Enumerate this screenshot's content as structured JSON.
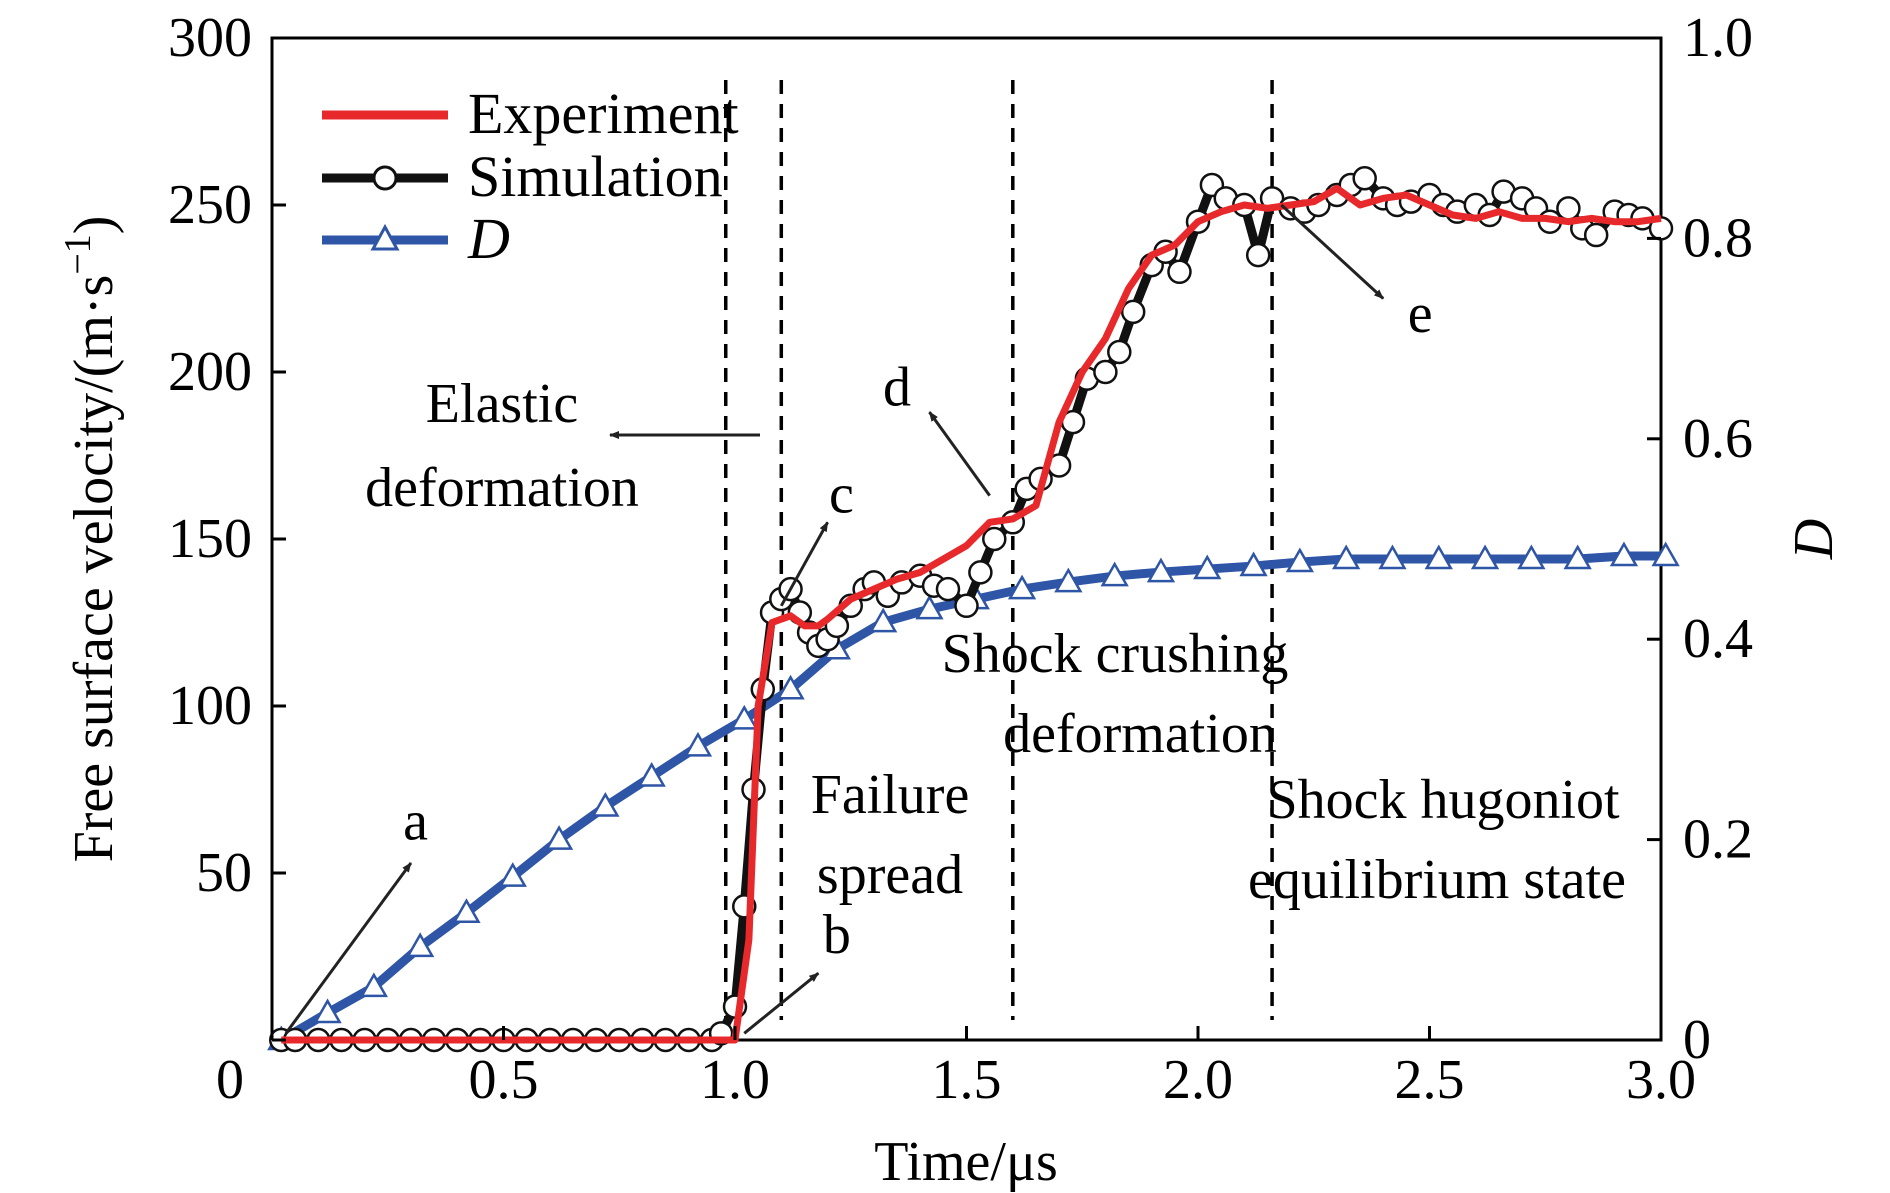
{
  "chart_data": {
    "type": "line",
    "x_axis": {
      "label": "Time/μs",
      "range": [
        0,
        3.0
      ],
      "ticks": [
        "0",
        "0.5",
        "1.0",
        "1.5",
        "2.0",
        "2.5",
        "3.0"
      ]
    },
    "y_left": {
      "label": "Free surface velocity/(m·s⁻¹)",
      "label_main": "Free surface velocity/(m·s",
      "label_exp": "−1",
      "label_close": ")",
      "range": [
        0,
        300
      ],
      "ticks": [
        "0",
        "50",
        "100",
        "150",
        "200",
        "250",
        "300"
      ]
    },
    "y_right": {
      "label": "D",
      "range": [
        0,
        1.0
      ],
      "ticks": [
        "0",
        "0.2",
        "0.4",
        "0.6",
        "0.8",
        "1.0"
      ]
    },
    "grid": false,
    "legend": {
      "position": "top-left",
      "entries": [
        {
          "name": "Experiment",
          "color": "#e8292b",
          "marker": "none"
        },
        {
          "name": "Simulation",
          "color": "#111111",
          "marker": "open-circle"
        },
        {
          "name": "D",
          "color": "#2f55a6",
          "marker": "open-triangle",
          "italic": true
        }
      ]
    },
    "series": [
      {
        "name": "Experiment",
        "axis": "left",
        "color": "#e8292b",
        "x": [
          0.02,
          1.0,
          1.03,
          1.05,
          1.08,
          1.12,
          1.15,
          1.18,
          1.2,
          1.25,
          1.3,
          1.35,
          1.4,
          1.45,
          1.5,
          1.55,
          1.6,
          1.65,
          1.7,
          1.75,
          1.8,
          1.85,
          1.9,
          1.95,
          2.0,
          2.05,
          2.1,
          2.15,
          2.2,
          2.25,
          2.3,
          2.35,
          2.4,
          2.45,
          2.5,
          2.55,
          2.6,
          2.65,
          2.7,
          2.75,
          2.8,
          2.85,
          2.9,
          2.95,
          3.0
        ],
        "y": [
          0,
          0,
          30,
          100,
          125,
          127,
          124,
          124,
          126,
          132,
          135,
          138,
          140,
          144,
          148,
          155,
          156,
          160,
          185,
          200,
          210,
          225,
          235,
          238,
          245,
          248,
          250,
          249,
          250,
          251,
          255,
          250,
          252,
          253,
          250,
          247,
          246,
          248,
          246,
          246,
          245,
          246,
          245,
          245,
          246
        ]
      },
      {
        "name": "Simulation",
        "axis": "left",
        "color": "#111111",
        "x": [
          0.02,
          0.05,
          0.1,
          0.15,
          0.2,
          0.25,
          0.3,
          0.35,
          0.4,
          0.45,
          0.5,
          0.55,
          0.6,
          0.65,
          0.7,
          0.75,
          0.8,
          0.85,
          0.9,
          0.95,
          0.97,
          1.0,
          1.02,
          1.04,
          1.06,
          1.08,
          1.1,
          1.12,
          1.14,
          1.16,
          1.18,
          1.2,
          1.22,
          1.25,
          1.28,
          1.3,
          1.33,
          1.36,
          1.4,
          1.43,
          1.46,
          1.5,
          1.53,
          1.56,
          1.6,
          1.63,
          1.66,
          1.7,
          1.73,
          1.76,
          1.8,
          1.83,
          1.86,
          1.9,
          1.93,
          1.96,
          2.0,
          2.03,
          2.06,
          2.1,
          2.13,
          2.16,
          2.2,
          2.23,
          2.26,
          2.3,
          2.33,
          2.36,
          2.4,
          2.43,
          2.46,
          2.5,
          2.53,
          2.56,
          2.6,
          2.63,
          2.66,
          2.7,
          2.73,
          2.76,
          2.8,
          2.83,
          2.86,
          2.9,
          2.93,
          2.96,
          3.0
        ],
        "y": [
          0,
          0,
          0,
          0,
          0,
          0,
          0,
          0,
          0,
          0,
          0,
          0,
          0,
          0,
          0,
          0,
          0,
          0,
          0,
          0,
          2,
          10,
          40,
          75,
          105,
          128,
          132,
          135,
          128,
          122,
          118,
          120,
          124,
          130,
          135,
          137,
          133,
          137,
          139,
          136,
          135,
          130,
          140,
          150,
          155,
          165,
          168,
          172,
          185,
          198,
          200,
          206,
          218,
          232,
          236,
          230,
          245,
          256,
          252,
          250,
          235,
          252,
          249,
          248,
          250,
          253,
          256,
          258,
          252,
          250,
          251,
          253,
          250,
          248,
          250,
          247,
          254,
          252,
          249,
          245,
          249,
          243,
          241,
          248,
          247,
          246,
          243
        ]
      },
      {
        "name": "D",
        "axis": "right",
        "color": "#2f55a6",
        "x": [
          0.02,
          0.12,
          0.22,
          0.32,
          0.42,
          0.52,
          0.62,
          0.72,
          0.82,
          0.92,
          1.02,
          1.12,
          1.22,
          1.32,
          1.42,
          1.52,
          1.62,
          1.72,
          1.82,
          1.92,
          2.02,
          2.12,
          2.22,
          2.32,
          2.42,
          2.52,
          2.62,
          2.72,
          2.82,
          2.92,
          3.02
        ],
        "y": [
          0.0,
          0.027,
          0.053,
          0.093,
          0.127,
          0.163,
          0.2,
          0.233,
          0.263,
          0.293,
          0.32,
          0.35,
          0.39,
          0.417,
          0.43,
          0.44,
          0.45,
          0.457,
          0.463,
          0.467,
          0.47,
          0.473,
          0.477,
          0.48,
          0.48,
          0.48,
          0.48,
          0.48,
          0.48,
          0.483,
          0.483
        ]
      }
    ],
    "vertical_lines": [
      0.98,
      1.1,
      1.6,
      2.16
    ],
    "annotations": [
      {
        "label": "a",
        "x": 0.3,
        "y": 60
      },
      {
        "label": "b",
        "x": 1.2,
        "y": 28
      },
      {
        "label": "c",
        "x": 1.2,
        "y": 158
      },
      {
        "label": "d",
        "x": 1.35,
        "y": 190
      },
      {
        "label": "e",
        "x": 2.48,
        "y": 210
      }
    ],
    "region_labels": [
      {
        "lines": [
          "Elastic",
          "deformation"
        ]
      },
      {
        "lines": [
          "Failure",
          "spread"
        ]
      },
      {
        "lines": [
          "Shock crushing",
          "deformation"
        ]
      },
      {
        "lines": [
          "Shock hugoniot",
          "equilibrium state"
        ]
      }
    ]
  }
}
